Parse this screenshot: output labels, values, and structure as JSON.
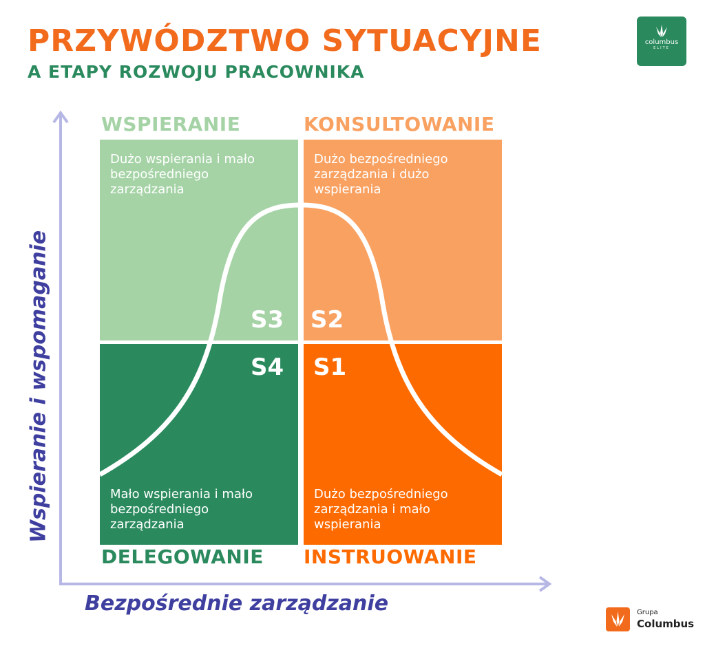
{
  "title": "PRZYWÓDZTWO SYTUACYJNE",
  "subtitle": "A ETAPY ROZWOJU PRACOWNIKA",
  "logo_elite": {
    "name": "columbus",
    "tag": "ELITE"
  },
  "logo_grupa": {
    "line1": "Grupa",
    "line2": "Columbus"
  },
  "axes": {
    "y_label": "Wspieranie i wspomaganie",
    "x_label": "Bezpośrednie zarządzanie"
  },
  "quadrants": {
    "top_left": {
      "label": "WSPIERANIE",
      "desc": "Dużo wspierania i mało bezpośredniego zarządzania",
      "stage": "S3"
    },
    "top_right": {
      "label": "KONSULTOWANIE",
      "desc": "Dużo bezpośredniego zarządzania i dużo wspierania",
      "stage": "S2"
    },
    "bottom_left": {
      "label": "DELEGOWANIE",
      "desc": "Mało wspierania i mało bezpośredniego zarządzania",
      "stage": "S4"
    },
    "bottom_right": {
      "label": "INSTRUOWANIE",
      "desc": "Dużo bezpośredniego zarządzania i mało wspierania",
      "stage": "S1"
    }
  },
  "colors": {
    "orange_title": "#F26B1D",
    "green_dark": "#2A8A5E",
    "green_light": "#A5D3A6",
    "orange_light": "#F9A161",
    "orange_dark": "#FD6A00",
    "axis": "#B7B7E6",
    "axis_text": "#3F3FA0",
    "label_light_green": "#A5D3A6",
    "label_light_orange": "#F9A161"
  }
}
